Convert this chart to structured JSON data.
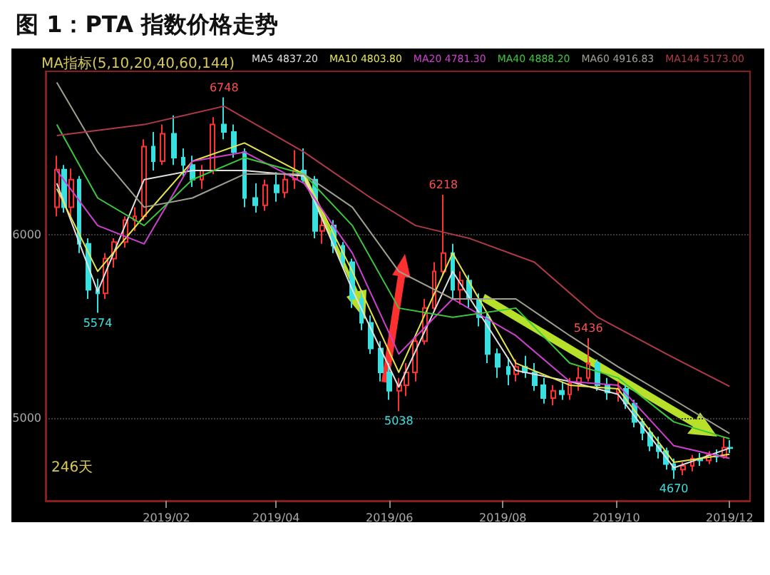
{
  "chart_data": {
    "type": "candlestick",
    "title": "图 1：PTA 指数价格走势",
    "legend_title": "MA指标(5,10,20,40,60,144)",
    "x": [
      "2018-12-04",
      "2018-12-08",
      "2018-12-12",
      "2018-12-16",
      "2018-12-21",
      "2018-12-26",
      "2018-12-30",
      "2019-01-04",
      "2019-01-10",
      "2019-01-15",
      "2019-01-20",
      "2019-01-25",
      "2019-01-30",
      "2019-02-05",
      "2019-02-10",
      "2019-02-15",
      "2019-02-20",
      "2019-02-26",
      "2019-03-04",
      "2019-03-09",
      "2019-03-15",
      "2019-03-21",
      "2019-03-26",
      "2019-04-01",
      "2019-04-06",
      "2019-04-11",
      "2019-04-16",
      "2019-04-22",
      "2019-04-26",
      "2019-05-02",
      "2019-05-07",
      "2019-05-12",
      "2019-05-17",
      "2019-05-22",
      "2019-05-27",
      "2019-06-01",
      "2019-06-06",
      "2019-06-10",
      "2019-06-15",
      "2019-06-20",
      "2019-06-25",
      "2019-06-30",
      "2019-07-05",
      "2019-07-09",
      "2019-07-14",
      "2019-07-19",
      "2019-07-24",
      "2019-07-29",
      "2019-08-04",
      "2019-08-08",
      "2019-08-13",
      "2019-08-18",
      "2019-08-23",
      "2019-08-28",
      "2019-09-02",
      "2019-09-06",
      "2019-09-11",
      "2019-09-16",
      "2019-09-21",
      "2019-09-26",
      "2019-10-02",
      "2019-10-06",
      "2019-10-11",
      "2019-10-15",
      "2019-10-19",
      "2019-10-24",
      "2019-10-28",
      "2019-11-01",
      "2019-11-06",
      "2019-11-11",
      "2019-11-15",
      "2019-11-20",
      "2019-11-24",
      "2019-11-28",
      "2019-12-01"
    ],
    "ohlc": [
      [
        6150,
        6430,
        6100,
        6355
      ],
      [
        6355,
        6380,
        6120,
        6150
      ],
      [
        6150,
        6360,
        6100,
        6300
      ],
      [
        6300,
        6320,
        5900,
        5950
      ],
      [
        5950,
        5980,
        5650,
        5700
      ],
      [
        5700,
        5760,
        5574,
        5680
      ],
      [
        5680,
        5900,
        5650,
        5870
      ],
      [
        5870,
        5980,
        5820,
        5960
      ],
      [
        5960,
        6100,
        5930,
        6080
      ],
      [
        6080,
        6150,
        6020,
        6100
      ],
      [
        6100,
        6520,
        6080,
        6480
      ],
      [
        6480,
        6560,
        6350,
        6400
      ],
      [
        6400,
        6600,
        6380,
        6550
      ],
      [
        6550,
        6650,
        6380,
        6420
      ],
      [
        6420,
        6470,
        6320,
        6380
      ],
      [
        6380,
        6430,
        6260,
        6300
      ],
      [
        6300,
        6380,
        6250,
        6350
      ],
      [
        6350,
        6640,
        6330,
        6600
      ],
      [
        6600,
        6748,
        6520,
        6560
      ],
      [
        6560,
        6600,
        6420,
        6450
      ],
      [
        6450,
        6470,
        6150,
        6200
      ],
      [
        6200,
        6280,
        6120,
        6160
      ],
      [
        6160,
        6300,
        6130,
        6270
      ],
      [
        6270,
        6340,
        6180,
        6230
      ],
      [
        6230,
        6330,
        6200,
        6300
      ],
      [
        6300,
        6460,
        6250,
        6350
      ],
      [
        6350,
        6470,
        6280,
        6300
      ],
      [
        6300,
        6320,
        5980,
        6020
      ],
      [
        6020,
        6100,
        5950,
        6050
      ],
      [
        6050,
        6080,
        5900,
        5940
      ],
      [
        5940,
        5960,
        5820,
        5850
      ],
      [
        5850,
        5870,
        5600,
        5650
      ],
      [
        5650,
        5700,
        5480,
        5520
      ],
      [
        5520,
        5560,
        5350,
        5380
      ],
      [
        5380,
        5420,
        5200,
        5250
      ],
      [
        5250,
        5300,
        5100,
        5150
      ],
      [
        5150,
        5220,
        5038,
        5180
      ],
      [
        5180,
        5300,
        5120,
        5250
      ],
      [
        5250,
        5450,
        5200,
        5420
      ],
      [
        5420,
        5650,
        5400,
        5600
      ],
      [
        5600,
        5850,
        5580,
        5800
      ],
      [
        5800,
        6218,
        5780,
        5900
      ],
      [
        5900,
        5950,
        5650,
        5700
      ],
      [
        5700,
        5800,
        5620,
        5750
      ],
      [
        5750,
        5780,
        5600,
        5650
      ],
      [
        5650,
        5680,
        5500,
        5550
      ],
      [
        5550,
        5580,
        5300,
        5350
      ],
      [
        5350,
        5380,
        5220,
        5280
      ],
      [
        5280,
        5330,
        5180,
        5240
      ],
      [
        5240,
        5320,
        5200,
        5280
      ],
      [
        5280,
        5340,
        5220,
        5250
      ],
      [
        5250,
        5300,
        5150,
        5180
      ],
      [
        5180,
        5220,
        5080,
        5110
      ],
      [
        5110,
        5180,
        5070,
        5150
      ],
      [
        5150,
        5200,
        5100,
        5130
      ],
      [
        5130,
        5220,
        5100,
        5190
      ],
      [
        5190,
        5280,
        5150,
        5220
      ],
      [
        5220,
        5436,
        5200,
        5300
      ],
      [
        5300,
        5320,
        5150,
        5180
      ],
      [
        5180,
        5220,
        5100,
        5140
      ],
      [
        5140,
        5200,
        5090,
        5160
      ],
      [
        5160,
        5180,
        5050,
        5080
      ],
      [
        5080,
        5100,
        4950,
        4980
      ],
      [
        4980,
        5000,
        4880,
        4920
      ],
      [
        4920,
        4950,
        4820,
        4850
      ],
      [
        4850,
        4900,
        4780,
        4820
      ],
      [
        4820,
        4840,
        4720,
        4750
      ],
      [
        4750,
        4780,
        4670,
        4720
      ],
      [
        4720,
        4760,
        4690,
        4740
      ],
      [
        4740,
        4800,
        4710,
        4780
      ],
      [
        4780,
        4810,
        4740,
        4770
      ],
      [
        4770,
        4820,
        4750,
        4800
      ],
      [
        4800,
        4830,
        4760,
        4790
      ],
      [
        4790,
        4900,
        4780,
        4840
      ],
      [
        4840,
        4880,
        4810,
        4837
      ]
    ],
    "colors": [
      "#ff3232",
      "#38e0e0",
      "#ff3232",
      "#38e0e0",
      "#38e0e0",
      "#38e0e0",
      "#ff3232",
      "#ff3232",
      "#ff3232",
      "#ff3232",
      "#ff3232",
      "#38e0e0",
      "#ff3232",
      "#38e0e0",
      "#38e0e0",
      "#38e0e0",
      "#ff3232",
      "#ff3232",
      "#38e0e0",
      "#38e0e0",
      "#38e0e0",
      "#38e0e0",
      "#ff3232",
      "#38e0e0",
      "#ff3232",
      "#ff3232",
      "#38e0e0",
      "#38e0e0",
      "#ff3232",
      "#38e0e0",
      "#38e0e0",
      "#38e0e0",
      "#38e0e0",
      "#38e0e0",
      "#38e0e0",
      "#38e0e0",
      "#ff3232",
      "#ff3232",
      "#ff3232",
      "#ff3232",
      "#ff3232",
      "#ff3232",
      "#38e0e0",
      "#ff3232",
      "#38e0e0",
      "#38e0e0",
      "#38e0e0",
      "#38e0e0",
      "#38e0e0",
      "#ff3232",
      "#38e0e0",
      "#38e0e0",
      "#38e0e0",
      "#ff3232",
      "#38e0e0",
      "#ff3232",
      "#ff3232",
      "#ff3232",
      "#38e0e0",
      "#38e0e0",
      "#ff3232",
      "#38e0e0",
      "#38e0e0",
      "#38e0e0",
      "#38e0e0",
      "#38e0e0",
      "#38e0e0",
      "#38e0e0",
      "#ff3232",
      "#ff3232",
      "#38e0e0",
      "#ff3232",
      "#38e0e0",
      "#ff3232",
      "#38e0e0"
    ],
    "series": [
      {
        "type": "line",
        "name": "MA5 4837.20",
        "color": "#e0e0e0",
        "x": [
          "2018-12-04",
          "2018-12-26",
          "2019-01-20",
          "2019-02-15",
          "2019-03-15",
          "2019-04-16",
          "2019-05-12",
          "2019-06-06",
          "2019-07-05",
          "2019-08-08",
          "2019-09-06",
          "2019-10-02",
          "2019-11-01",
          "2019-12-01"
        ],
        "values": [
          6280,
          5690,
          6300,
          6350,
          6350,
          6320,
          5700,
          5170,
          5800,
          5260,
          5200,
          5130,
          4730,
          4837
        ]
      },
      {
        "type": "line",
        "name": "MA10 4803.80",
        "color": "#e6e64c",
        "x": [
          "2018-12-04",
          "2018-12-26",
          "2019-01-20",
          "2019-02-15",
          "2019-03-15",
          "2019-04-16",
          "2019-05-12",
          "2019-06-06",
          "2019-07-05",
          "2019-08-08",
          "2019-09-06",
          "2019-10-02",
          "2019-11-01",
          "2019-12-01"
        ],
        "values": [
          6250,
          5800,
          6100,
          6400,
          6500,
          6330,
          5800,
          5250,
          5900,
          5300,
          5180,
          5160,
          4760,
          4804
        ]
      },
      {
        "type": "line",
        "name": "MA20 4781.30",
        "color": "#d040d0",
        "x": [
          "2018-12-04",
          "2018-12-26",
          "2019-01-20",
          "2019-02-15",
          "2019-03-15",
          "2019-04-16",
          "2019-05-12",
          "2019-06-06",
          "2019-07-05",
          "2019-08-08",
          "2019-09-06",
          "2019-10-02",
          "2019-11-01",
          "2019-12-01"
        ],
        "values": [
          6350,
          6050,
          5950,
          6400,
          6450,
          6280,
          5900,
          5350,
          5650,
          5450,
          5200,
          5180,
          4850,
          4781
        ]
      },
      {
        "type": "line",
        "name": "MA40 4888.20",
        "color": "#3cc83c",
        "x": [
          "2018-12-04",
          "2018-12-26",
          "2019-01-20",
          "2019-02-15",
          "2019-03-15",
          "2019-04-16",
          "2019-05-12",
          "2019-06-06",
          "2019-07-05",
          "2019-08-08",
          "2019-09-06",
          "2019-10-02",
          "2019-11-01",
          "2019-12-01"
        ],
        "values": [
          6600,
          6200,
          6050,
          6300,
          6420,
          6330,
          6050,
          5600,
          5550,
          5600,
          5300,
          5220,
          4980,
          4888
        ]
      },
      {
        "type": "line",
        "name": "MA60 4916.83",
        "color": "#a0a090",
        "x": [
          "2018-12-04",
          "2018-12-26",
          "2019-01-20",
          "2019-02-15",
          "2019-03-15",
          "2019-04-16",
          "2019-05-12",
          "2019-06-06",
          "2019-07-05",
          "2019-08-08",
          "2019-09-06",
          "2019-10-02",
          "2019-11-01",
          "2019-12-01"
        ],
        "values": [
          6830,
          6450,
          6150,
          6200,
          6330,
          6330,
          6150,
          5800,
          5650,
          5650,
          5450,
          5280,
          5100,
          4917
        ]
      },
      {
        "type": "line",
        "name": "MA144 5173.00",
        "color": "#b03a48",
        "x": [
          "2018-12-04",
          "2019-01-20",
          "2019-03-04",
          "2019-04-16",
          "2019-05-22",
          "2019-06-15",
          "2019-07-14",
          "2019-08-18",
          "2019-09-21",
          "2019-10-28",
          "2019-12-01"
        ],
        "values": [
          6540,
          6600,
          6700,
          6450,
          6200,
          6050,
          5980,
          5850,
          5550,
          5350,
          5173
        ]
      }
    ],
    "annotations": [
      {
        "text": "5574",
        "x": "2018-12-26",
        "y": 5574
      },
      {
        "text": "6748",
        "x": "2019-03-04",
        "y": 6748
      },
      {
        "text": "6218",
        "x": "2019-06-30",
        "y": 6218
      },
      {
        "text": "5038",
        "x": "2019-06-06",
        "y": 5038
      },
      {
        "text": "5436",
        "x": "2019-09-16",
        "y": 5436
      },
      {
        "text": "4670",
        "x": "2019-11-01",
        "y": 4670
      },
      "246天"
    ],
    "xlim": [
      "2018-11-28",
      "2019-12-12"
    ],
    "xticks": [
      {
        "value": "2019-02-01",
        "label": "2019/02"
      },
      {
        "value": "2019-04-01",
        "label": "2019/04"
      },
      {
        "value": "2019-06-01",
        "label": "2019/06"
      },
      {
        "value": "2019-08-01",
        "label": "2019/08"
      },
      {
        "value": "2019-10-01",
        "label": "2019/10"
      },
      {
        "value": "2019-12-01",
        "label": "2019/12"
      }
    ],
    "ylim": [
      4550,
      6890
    ],
    "yticks": [
      5000,
      6000
    ],
    "grid": "y",
    "legend": "top right",
    "marker": "none",
    "line_style": "solid"
  }
}
